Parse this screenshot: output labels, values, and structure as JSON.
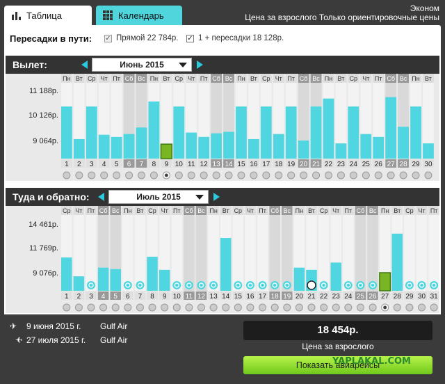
{
  "tabs": [
    {
      "label": "Таблица",
      "icon": "bar-chart-icon"
    },
    {
      "label": "Календарь",
      "icon": "calendar-grid-icon"
    }
  ],
  "header": {
    "class_label": "Эконом",
    "price_note": "Цена за взрослого Только ориентировочные цены"
  },
  "transfers": {
    "label": "Пересадки в пути:",
    "direct": "Прямой 22 784р.",
    "one_plus": "1 + пересадки 18 128р."
  },
  "departure": {
    "label": "Вылет:",
    "month": "Июнь 2015"
  },
  "return": {
    "label": "Туда и обратно:",
    "month": "Июль 2015"
  },
  "colors": {
    "bar": "#4fd6e0",
    "selected": "#7ab524",
    "dark": "#333333"
  },
  "chart_data": [
    {
      "type": "bar",
      "title": "",
      "yticks": [
        "11 188р.",
        "10 126р.",
        "9 064р."
      ],
      "weekdays": [
        "Пн",
        "Вт",
        "Ср",
        "Чт",
        "Пт",
        "Сб",
        "Вс",
        "Пн",
        "Вт",
        "Ср",
        "Чт",
        "Пт",
        "Сб",
        "Вс",
        "Пн",
        "Вт",
        "Ср",
        "Чт",
        "Пт",
        "Сб",
        "Вс",
        "Пн",
        "Вт",
        "Ср",
        "Чт",
        "Пт",
        "Сб",
        "Вс",
        "Пн",
        "Вт"
      ],
      "categories": [
        "1",
        "2",
        "3",
        "4",
        "5",
        "6",
        "7",
        "8",
        "9",
        "10",
        "11",
        "12",
        "13",
        "14",
        "15",
        "16",
        "17",
        "18",
        "19",
        "20",
        "21",
        "22",
        "23",
        "24",
        "25",
        "26",
        "27",
        "28",
        "29",
        "30"
      ],
      "values": [
        0.72,
        0.27,
        0.72,
        0.33,
        0.3,
        0.34,
        0.43,
        0.79,
        0.2,
        0.72,
        0.36,
        0.3,
        0.35,
        0.37,
        0.72,
        0.27,
        0.72,
        0.34,
        0.72,
        0.25,
        0.72,
        0.83,
        0.21,
        0.72,
        0.34,
        0.3,
        0.85,
        0.44,
        0.72,
        0.21
      ],
      "selected_index": 8,
      "weekend_days": [
        5,
        6,
        12,
        13,
        19,
        20,
        26,
        27
      ],
      "selected_radio": 8
    },
    {
      "type": "bar",
      "title": "",
      "yticks": [
        "14 461р.",
        "11 769р.",
        "9 076р."
      ],
      "weekdays": [
        "Ср",
        "Чт",
        "Пт",
        "Сб",
        "Вс",
        "Пн",
        "Вт",
        "Ср",
        "Чт",
        "Пт",
        "Сб",
        "Вс",
        "Пн",
        "Вт",
        "Ср",
        "Чт",
        "Пт",
        "Сб",
        "Вс",
        "Пн",
        "Вт",
        "Ср",
        "Чт",
        "Пт",
        "Сб",
        "Вс",
        "Пн",
        "Вт",
        "Ср",
        "Чт",
        "Пт"
      ],
      "categories": [
        "1",
        "2",
        "3",
        "4",
        "5",
        "6",
        "7",
        "8",
        "9",
        "10",
        "11",
        "12",
        "13",
        "14",
        "15",
        "16",
        "17",
        "18",
        "19",
        "20",
        "21",
        "22",
        "23",
        "24",
        "25",
        "26",
        "27",
        "28",
        "29",
        "30",
        "31"
      ],
      "values": [
        0.46,
        0.2,
        0,
        0.32,
        0.3,
        0,
        0,
        0.47,
        0.29,
        0,
        0,
        0,
        0,
        0.73,
        0,
        0,
        0,
        0,
        0,
        0.32,
        0.29,
        0,
        0.39,
        0,
        0,
        0,
        0.25,
        0.79,
        0,
        0,
        0
      ],
      "selected_index": 26,
      "weekend_days": [
        3,
        4,
        10,
        11,
        17,
        18,
        24,
        25
      ],
      "selected_radio": 26,
      "highlight_index": 20
    }
  ],
  "flights": [
    {
      "date": "9 июня 2015 г.",
      "airline": "Gulf Air"
    },
    {
      "date": "27 июля 2015 г.",
      "airline": "Gulf Air"
    }
  ],
  "summary": {
    "price": "18 454р.",
    "price_sub": "Цена за взрослого",
    "buy": "Показать авиарейсы"
  },
  "watermark": "YAPLAKAL.COM"
}
